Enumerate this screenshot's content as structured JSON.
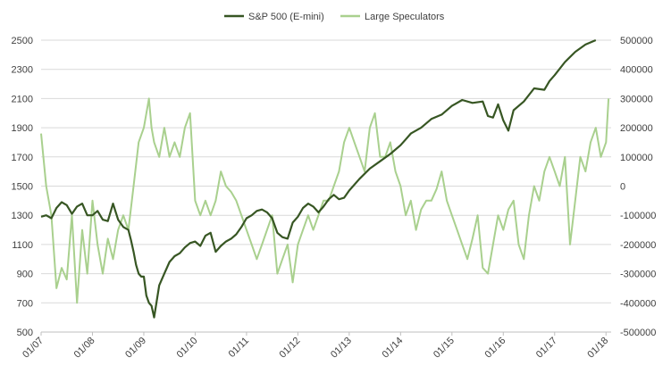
{
  "chart_data": {
    "type": "line",
    "title": "",
    "xlabel": "",
    "ylabel": "",
    "legend_placement": "top-center",
    "grid": "horizontal",
    "x_tick_labels": [
      "01/07",
      "01/08",
      "01/09",
      "01/10",
      "01/11",
      "01/12",
      "01/13",
      "01/14",
      "01/15",
      "01/16",
      "01/17",
      "01/18"
    ],
    "x_range": [
      2007.0,
      2018.1
    ],
    "y_left": {
      "min": 500,
      "max": 2500,
      "ticks": [
        500,
        700,
        900,
        1100,
        1300,
        1500,
        1700,
        1900,
        2100,
        2300,
        2500
      ],
      "tick_labels": [
        "500",
        "700",
        "900",
        "1100",
        "1300",
        "1500",
        "1700",
        "1900",
        "2100",
        "2300",
        "2500"
      ]
    },
    "y_right": {
      "min": -500000,
      "max": 500000,
      "ticks": [
        -500000,
        -400000,
        -300000,
        -200000,
        -100000,
        0,
        100000,
        200000,
        300000,
        400000,
        500000
      ],
      "tick_labels": [
        "-500000",
        "-400000",
        "-300000",
        "-200000",
        "-100000",
        "0",
        "100000",
        "200000",
        "300000",
        "400000",
        "500000"
      ]
    },
    "series": [
      {
        "name": "S&P 500 (E-mini)",
        "axis": "left",
        "color": "#375623",
        "x": [
          2007.0,
          2007.1,
          2007.2,
          2007.3,
          2007.4,
          2007.5,
          2007.6,
          2007.7,
          2007.8,
          2007.9,
          2008.0,
          2008.1,
          2008.2,
          2008.3,
          2008.4,
          2008.5,
          2008.6,
          2008.7,
          2008.75,
          2008.8,
          2008.85,
          2008.9,
          2008.95,
          2009.0,
          2009.05,
          2009.1,
          2009.15,
          2009.2,
          2009.3,
          2009.4,
          2009.5,
          2009.6,
          2009.7,
          2009.8,
          2009.9,
          2010.0,
          2010.1,
          2010.2,
          2010.3,
          2010.4,
          2010.5,
          2010.6,
          2010.7,
          2010.8,
          2010.9,
          2011.0,
          2011.1,
          2011.2,
          2011.3,
          2011.4,
          2011.5,
          2011.6,
          2011.7,
          2011.8,
          2011.9,
          2012.0,
          2012.1,
          2012.2,
          2012.3,
          2012.4,
          2012.5,
          2012.6,
          2012.7,
          2012.8,
          2012.9,
          2013.0,
          2013.2,
          2013.4,
          2013.6,
          2013.8,
          2014.0,
          2014.1,
          2014.2,
          2014.4,
          2014.6,
          2014.8,
          2015.0,
          2015.2,
          2015.4,
          2015.6,
          2015.7,
          2015.8,
          2015.9,
          2016.0,
          2016.1,
          2016.2,
          2016.4,
          2016.6,
          2016.8,
          2016.9,
          2017.0,
          2017.2,
          2017.4,
          2017.6,
          2017.8
        ],
        "values": [
          1290,
          1300,
          1280,
          1350,
          1390,
          1370,
          1310,
          1360,
          1380,
          1300,
          1300,
          1330,
          1270,
          1260,
          1380,
          1270,
          1220,
          1200,
          1130,
          1050,
          960,
          900,
          880,
          880,
          750,
          700,
          680,
          600,
          820,
          900,
          980,
          1020,
          1040,
          1080,
          1110,
          1120,
          1090,
          1160,
          1180,
          1050,
          1090,
          1120,
          1140,
          1170,
          1220,
          1280,
          1300,
          1330,
          1340,
          1320,
          1280,
          1180,
          1150,
          1140,
          1250,
          1290,
          1350,
          1380,
          1360,
          1320,
          1360,
          1410,
          1440,
          1410,
          1420,
          1470,
          1550,
          1620,
          1670,
          1720,
          1780,
          1820,
          1860,
          1900,
          1960,
          1990,
          2050,
          2090,
          2070,
          2080,
          1980,
          1970,
          2060,
          1950,
          1880,
          2020,
          2080,
          2170,
          2160,
          2220,
          2260,
          2350,
          2420,
          2470,
          2500
        ]
      },
      {
        "name": "Large Speculators",
        "axis": "right",
        "color": "#a9d08e",
        "x": [
          2007.0,
          2007.1,
          2007.2,
          2007.3,
          2007.4,
          2007.5,
          2007.6,
          2007.7,
          2007.8,
          2007.9,
          2008.0,
          2008.1,
          2008.2,
          2008.3,
          2008.4,
          2008.5,
          2008.6,
          2008.7,
          2008.8,
          2008.9,
          2009.0,
          2009.1,
          2009.15,
          2009.2,
          2009.3,
          2009.4,
          2009.5,
          2009.6,
          2009.7,
          2009.8,
          2009.9,
          2010.0,
          2010.1,
          2010.2,
          2010.3,
          2010.4,
          2010.5,
          2010.6,
          2010.7,
          2010.8,
          2010.9,
          2011.0,
          2011.1,
          2011.2,
          2011.3,
          2011.4,
          2011.5,
          2011.6,
          2011.7,
          2011.8,
          2011.9,
          2012.0,
          2012.1,
          2012.2,
          2012.3,
          2012.4,
          2012.5,
          2012.6,
          2012.7,
          2012.8,
          2012.9,
          2013.0,
          2013.1,
          2013.2,
          2013.3,
          2013.4,
          2013.5,
          2013.6,
          2013.7,
          2013.8,
          2013.9,
          2014.0,
          2014.1,
          2014.2,
          2014.3,
          2014.4,
          2014.5,
          2014.6,
          2014.7,
          2014.8,
          2014.9,
          2015.0,
          2015.1,
          2015.2,
          2015.3,
          2015.4,
          2015.5,
          2015.6,
          2015.7,
          2015.8,
          2015.9,
          2016.0,
          2016.1,
          2016.2,
          2016.3,
          2016.4,
          2016.5,
          2016.6,
          2016.7,
          2016.8,
          2016.9,
          2017.0,
          2017.1,
          2017.2,
          2017.3,
          2017.4,
          2017.5,
          2017.6,
          2017.7,
          2017.8,
          2017.9,
          2018.0,
          2018.05
        ],
        "values": [
          180000,
          0,
          -100000,
          -350000,
          -280000,
          -320000,
          -100000,
          -400000,
          -150000,
          -300000,
          -50000,
          -200000,
          -300000,
          -180000,
          -250000,
          -150000,
          -100000,
          -150000,
          0,
          150000,
          200000,
          300000,
          200000,
          150000,
          100000,
          200000,
          100000,
          150000,
          100000,
          200000,
          250000,
          -50000,
          -100000,
          -50000,
          -100000,
          -50000,
          50000,
          0,
          -20000,
          -50000,
          -100000,
          -150000,
          -200000,
          -250000,
          -200000,
          -150000,
          -100000,
          -300000,
          -250000,
          -200000,
          -330000,
          -200000,
          -150000,
          -100000,
          -150000,
          -100000,
          -50000,
          -50000,
          0,
          50000,
          150000,
          200000,
          150000,
          100000,
          50000,
          200000,
          250000,
          100000,
          100000,
          150000,
          50000,
          0,
          -100000,
          -50000,
          -150000,
          -80000,
          -50000,
          -50000,
          -10000,
          50000,
          -50000,
          -100000,
          -150000,
          -200000,
          -250000,
          -180000,
          -100000,
          -280000,
          -300000,
          -200000,
          -100000,
          -150000,
          -80000,
          -50000,
          -200000,
          -250000,
          -100000,
          0,
          -50000,
          50000,
          100000,
          50000,
          0,
          100000,
          -200000,
          -50000,
          100000,
          50000,
          150000,
          200000,
          100000,
          150000,
          300000
        ]
      }
    ]
  }
}
